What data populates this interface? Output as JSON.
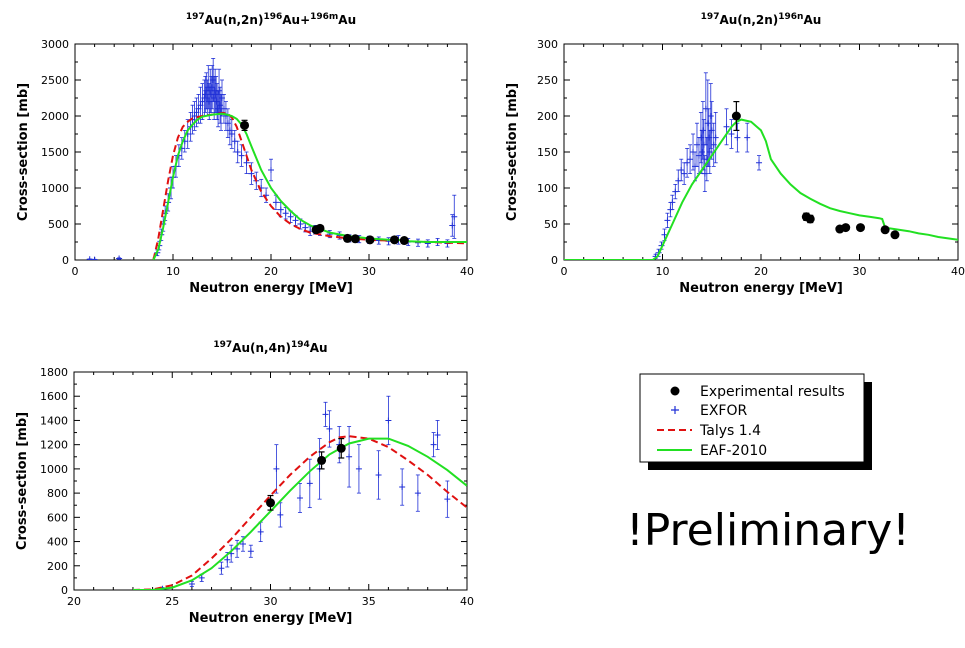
{
  "legend": {
    "items": [
      {
        "label": "Experimental results",
        "marker": "dot",
        "color": "#000000"
      },
      {
        "label": "EXFOR",
        "marker": "plus",
        "color": "#1f2fd6"
      },
      {
        "label": "Talys 1.4",
        "marker": "dashed",
        "color": "#e01010"
      },
      {
        "label": "EAF-2010",
        "marker": "line",
        "color": "#22e022"
      }
    ]
  },
  "preliminary_text": "!Preliminary!",
  "colors": {
    "experimental": "#000000",
    "exfor": "#1f2fd6",
    "talys": "#e01010",
    "eaf": "#22e022"
  },
  "chart_data": [
    {
      "id": "au196",
      "type": "scatter",
      "title_pre": "197",
      "title_mid1": "Au(n,2n)",
      "title_sup2": "196",
      "title_mid2": "Au+",
      "title_sup3": "196m",
      "title_end": "Au",
      "xlabel": "Neutron energy [MeV]",
      "ylabel": "Cross-section [mb]",
      "xlim": [
        0,
        40
      ],
      "ylim": [
        0,
        3000
      ],
      "xticks": [
        0,
        10,
        20,
        30,
        40
      ],
      "yticks": [
        0,
        500,
        1000,
        1500,
        2000,
        2500,
        3000
      ],
      "series": [
        {
          "name": "Experimental results",
          "kind": "exp",
          "x": [
            17.3,
            24.6,
            25.0,
            27.8,
            28.6,
            30.1,
            32.6,
            33.6
          ],
          "y": [
            1870,
            420,
            440,
            300,
            295,
            280,
            280,
            270
          ],
          "err": [
            70,
            30,
            30,
            25,
            25,
            25,
            25,
            25
          ]
        },
        {
          "name": "EXFOR",
          "kind": "exfor",
          "x": [
            1.5,
            2,
            4.5,
            8.4,
            8.6,
            8.8,
            9.0,
            9.2,
            9.5,
            9.8,
            10.0,
            10.3,
            10.6,
            10.9,
            11.2,
            11.5,
            11.8,
            12.0,
            12.2,
            12.4,
            12.6,
            12.8,
            13.0,
            13.2,
            13.3,
            13.4,
            13.5,
            13.6,
            13.7,
            13.8,
            13.9,
            14.0,
            14.1,
            14.2,
            14.3,
            14.4,
            14.5,
            14.6,
            14.7,
            14.8,
            14.9,
            15.0,
            15.2,
            15.4,
            15.6,
            15.8,
            16.0,
            16.3,
            16.6,
            17.0,
            17.5,
            18.0,
            18.5,
            19.0,
            19.5,
            20.0,
            20.5,
            21.0,
            21.5,
            22.0,
            22.5,
            23.0,
            23.5,
            24.0,
            24.5,
            25.0,
            26.0,
            27.0,
            28.0,
            29.0,
            30.0,
            31.0,
            32.0,
            33.0,
            34.0,
            35.0,
            36.0,
            37.0,
            38.0,
            38.5,
            38.7
          ],
          "y": [
            10,
            5,
            20,
            100,
            200,
            350,
            500,
            650,
            800,
            1000,
            1150,
            1300,
            1450,
            1550,
            1650,
            1750,
            1850,
            1950,
            2000,
            2050,
            2100,
            2150,
            2200,
            2250,
            2300,
            2350,
            2250,
            2400,
            2200,
            2350,
            2300,
            2400,
            2500,
            2250,
            2350,
            2300,
            2200,
            2100,
            2350,
            2150,
            2050,
            2250,
            2100,
            2000,
            1900,
            1800,
            1750,
            1650,
            1500,
            1450,
            1350,
            1200,
            1100,
            1000,
            900,
            1250,
            800,
            700,
            650,
            600,
            550,
            500,
            450,
            400,
            420,
            400,
            360,
            340,
            300,
            290,
            280,
            270,
            260,
            280,
            250,
            240,
            230,
            250,
            230,
            480,
            600
          ],
          "err": [
            5,
            5,
            10,
            40,
            60,
            80,
            100,
            100,
            120,
            150,
            150,
            150,
            150,
            150,
            150,
            200,
            200,
            200,
            200,
            200,
            200,
            250,
            250,
            250,
            250,
            250,
            250,
            300,
            250,
            300,
            250,
            300,
            300,
            300,
            300,
            250,
            250,
            250,
            300,
            250,
            250,
            250,
            200,
            200,
            200,
            200,
            200,
            150,
            150,
            150,
            150,
            150,
            120,
            120,
            100,
            150,
            100,
            100,
            80,
            80,
            70,
            70,
            60,
            60,
            60,
            60,
            50,
            50,
            50,
            50,
            50,
            50,
            50,
            60,
            50,
            50,
            50,
            50,
            50,
            150,
            300
          ]
        },
        {
          "name": "Talys 1.4",
          "kind": "talys",
          "x": [
            8.0,
            8.5,
            9.0,
            9.5,
            10.0,
            10.5,
            11.0,
            11.5,
            12.0,
            13.0,
            14.0,
            15.0,
            15.5,
            16.0,
            16.5,
            17.0,
            17.5,
            18.0,
            19.0,
            20.0,
            21.0,
            22.0,
            23.0,
            24.0,
            26.0,
            28.0,
            30.0,
            32.0,
            34.0,
            36.0,
            38.0,
            40.0
          ],
          "y": [
            0,
            300,
            700,
            1100,
            1450,
            1700,
            1850,
            1920,
            1970,
            2000,
            2020,
            2040,
            2040,
            1980,
            1850,
            1650,
            1450,
            1250,
            950,
            750,
            600,
            500,
            430,
            380,
            330,
            300,
            280,
            270,
            260,
            250,
            240,
            230
          ]
        },
        {
          "name": "EAF-2010",
          "kind": "eaf",
          "x": [
            8.0,
            8.5,
            9.0,
            9.5,
            10.0,
            10.5,
            11.0,
            11.5,
            12.0,
            12.5,
            13.0,
            14.0,
            15.0,
            15.5,
            16.0,
            16.5,
            17.0,
            17.5,
            18.0,
            19.0,
            20.0,
            21.0,
            22.0,
            23.0,
            24.0,
            26.0,
            28.0,
            30.0,
            32.0,
            33.0,
            34.0,
            36.0,
            38.0,
            40.0
          ],
          "y": [
            0,
            150,
            450,
            800,
            1150,
            1450,
            1650,
            1800,
            1880,
            1950,
            1990,
            2020,
            2030,
            2020,
            2000,
            1960,
            1880,
            1750,
            1580,
            1250,
            1000,
            820,
            680,
            560,
            480,
            380,
            330,
            300,
            280,
            280,
            260,
            250,
            250,
            250
          ]
        }
      ]
    },
    {
      "id": "au196n",
      "type": "scatter",
      "title_pre": "197",
      "title_mid1": "Au(n,2n)",
      "title_sup2": "196n",
      "title_mid2": "Au",
      "title_sup3": "",
      "title_end": "",
      "xlabel": "Neutron energy [MeV]",
      "ylabel": "Cross-section [mb]",
      "xlim": [
        0,
        40
      ],
      "ylim": [
        0,
        300
      ],
      "xticks": [
        0,
        10,
        20,
        30,
        40
      ],
      "yticks": [
        0,
        50,
        100,
        150,
        200,
        250,
        300
      ],
      "series": [
        {
          "name": "Experimental results",
          "kind": "exp",
          "x": [
            17.5,
            24.6,
            25.0,
            28.0,
            28.6,
            30.1,
            32.6,
            33.6
          ],
          "y": [
            200,
            60,
            57,
            43,
            45,
            45,
            42,
            35
          ],
          "err": [
            20,
            5,
            5,
            3,
            3,
            3,
            3,
            3
          ]
        },
        {
          "name": "EXFOR",
          "kind": "exfor",
          "x": [
            9.3,
            9.6,
            9.9,
            10.2,
            10.5,
            10.8,
            11.0,
            11.3,
            11.6,
            11.9,
            12.2,
            12.5,
            12.8,
            13.1,
            13.3,
            13.5,
            13.7,
            13.9,
            14.0,
            14.1,
            14.2,
            14.3,
            14.4,
            14.5,
            14.6,
            14.7,
            14.8,
            14.9,
            15.0,
            15.2,
            15.4,
            16.5,
            17.0,
            17.6,
            18.6,
            19.8
          ],
          "y": [
            5,
            10,
            20,
            35,
            55,
            70,
            80,
            95,
            110,
            125,
            120,
            135,
            140,
            150,
            130,
            160,
            145,
            170,
            150,
            180,
            160,
            120,
            210,
            140,
            190,
            170,
            150,
            200,
            180,
            160,
            170,
            185,
            175,
            170,
            170,
            135
          ],
          "err": [
            3,
            5,
            5,
            8,
            10,
            10,
            10,
            10,
            15,
            15,
            15,
            20,
            20,
            25,
            20,
            30,
            25,
            35,
            30,
            40,
            35,
            25,
            50,
            30,
            60,
            40,
            30,
            45,
            40,
            30,
            35,
            25,
            20,
            20,
            20,
            10
          ]
        },
        {
          "name": "EAF-2010",
          "kind": "eaf",
          "x": [
            0,
            9.0,
            9.5,
            10.0,
            11.0,
            12.0,
            13.0,
            14.0,
            15.0,
            16.0,
            17.0,
            17.5,
            18.0,
            19.0,
            20.0,
            20.5,
            21.0,
            22.0,
            23.0,
            24.0,
            25.0,
            26.0,
            27.0,
            28.0,
            29.0,
            30.0,
            31.0,
            32.0,
            32.3,
            32.6,
            33.0,
            34.0,
            35.0,
            36.0,
            37.0,
            38.0,
            39.0,
            40.0
          ],
          "y": [
            0,
            0,
            5,
            20,
            50,
            80,
            105,
            125,
            145,
            165,
            185,
            192,
            195,
            192,
            180,
            165,
            140,
            120,
            105,
            93,
            85,
            78,
            72,
            68,
            65,
            62,
            60,
            58,
            57,
            45,
            44,
            42,
            40,
            37,
            35,
            32,
            30,
            28
          ]
        }
      ]
    },
    {
      "id": "au194",
      "type": "scatter",
      "title_pre": "197",
      "title_mid1": "Au(n,4n)",
      "title_sup2": "194",
      "title_mid2": "Au",
      "title_sup3": "",
      "title_end": "",
      "xlabel": "Neutron energy [MeV]",
      "ylabel": "Cross-section [mb]",
      "xlim": [
        20,
        40
      ],
      "ylim": [
        0,
        1800
      ],
      "xticks": [
        20,
        25,
        30,
        35,
        40
      ],
      "yticks": [
        0,
        200,
        400,
        600,
        800,
        1000,
        1200,
        1400,
        1600,
        1800
      ],
      "series": [
        {
          "name": "Experimental results",
          "kind": "exp",
          "x": [
            30.0,
            32.6,
            33.6
          ],
          "y": [
            720,
            1070,
            1170
          ],
          "err": [
            60,
            70,
            80
          ]
        },
        {
          "name": "EXFOR",
          "kind": "exfor",
          "x": [
            24.5,
            26.0,
            26.5,
            27.5,
            27.8,
            28.0,
            28.3,
            28.6,
            29.0,
            29.5,
            30.3,
            30.5,
            31.5,
            32.0,
            32.5,
            32.8,
            33.0,
            33.5,
            34.0,
            34.5,
            35.5,
            36.0,
            36.7,
            37.5,
            38.3,
            38.5,
            39.0
          ],
          "y": [
            10,
            50,
            100,
            180,
            250,
            300,
            340,
            380,
            320,
            480,
            1000,
            620,
            760,
            880,
            1000,
            1450,
            1330,
            1200,
            1100,
            1000,
            950,
            1400,
            850,
            800,
            1200,
            1280,
            750
          ],
          "err": [
            10,
            20,
            30,
            50,
            60,
            70,
            70,
            60,
            50,
            80,
            200,
            100,
            120,
            200,
            250,
            100,
            150,
            150,
            250,
            200,
            200,
            200,
            150,
            150,
            100,
            120,
            150
          ]
        },
        {
          "name": "Talys 1.4",
          "kind": "talys",
          "x": [
            23.0,
            24.0,
            25.0,
            26.0,
            27.0,
            28.0,
            29.0,
            30.0,
            31.0,
            32.0,
            33.0,
            33.5,
            34.0,
            35.0,
            36.0,
            37.0,
            38.0,
            39.0,
            40.0
          ],
          "y": [
            0,
            5,
            40,
            120,
            260,
            420,
            600,
            780,
            950,
            1100,
            1220,
            1260,
            1270,
            1250,
            1180,
            1070,
            950,
            810,
            680
          ]
        },
        {
          "name": "EAF-2010",
          "kind": "eaf",
          "x": [
            23.0,
            24.0,
            25.0,
            26.0,
            27.0,
            28.0,
            29.0,
            30.0,
            31.0,
            32.0,
            33.0,
            34.0,
            35.0,
            36.0,
            37.0,
            38.0,
            39.0,
            40.0
          ],
          "y": [
            0,
            0,
            20,
            80,
            180,
            320,
            480,
            650,
            820,
            980,
            1120,
            1210,
            1250,
            1250,
            1190,
            1100,
            990,
            860
          ]
        }
      ]
    }
  ]
}
